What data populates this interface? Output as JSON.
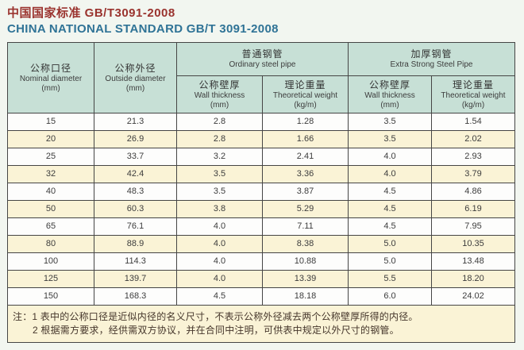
{
  "title": {
    "line1": "中国国家标准 GB/T3091-2008",
    "line2": "CHINA NATIONAL STANDARD GB/T 3091-2008"
  },
  "colors": {
    "page-bg": "#f2f6f0",
    "header-mint": "#c7e0d6",
    "row-cream": "#faf3d6",
    "row-white": "#fdfdfc",
    "border": "#454545",
    "title-red": "#9a332e",
    "title-blue": "#2f7396"
  },
  "table": {
    "header": {
      "col1": {
        "zh": "公称口径",
        "en": "Nominal diameter",
        "unit": "(mm)"
      },
      "col2": {
        "zh": "公称外径",
        "en": "Outside diameter",
        "unit": "(mm)"
      },
      "group_ordinary": {
        "zh": "普通钢管",
        "en": "Ordinary steel pipe"
      },
      "group_extra": {
        "zh": "加厚钢管",
        "en": "Extra Strong Steel Pipe"
      },
      "sub_wall": {
        "zh": "公称壁厚",
        "en": "Wall thickness",
        "unit": "(mm)"
      },
      "sub_weight": {
        "zh": "理论重量",
        "en": "Theoretical weight",
        "unit": "(kg/m)"
      }
    },
    "rows": [
      [
        "15",
        "21.3",
        "2.8",
        "1.28",
        "3.5",
        "1.54"
      ],
      [
        "20",
        "26.9",
        "2.8",
        "1.66",
        "3.5",
        "2.02"
      ],
      [
        "25",
        "33.7",
        "3.2",
        "2.41",
        "4.0",
        "2.93"
      ],
      [
        "32",
        "42.4",
        "3.5",
        "3.36",
        "4.0",
        "3.79"
      ],
      [
        "40",
        "48.3",
        "3.5",
        "3.87",
        "4.5",
        "4.86"
      ],
      [
        "50",
        "60.3",
        "3.8",
        "5.29",
        "4.5",
        "6.19"
      ],
      [
        "65",
        "76.1",
        "4.0",
        "7.11",
        "4.5",
        "7.95"
      ],
      [
        "80",
        "88.9",
        "4.0",
        "8.38",
        "5.0",
        "10.35"
      ],
      [
        "100",
        "114.3",
        "4.0",
        "10.88",
        "5.0",
        "13.48"
      ],
      [
        "125",
        "139.7",
        "4.0",
        "13.39",
        "5.5",
        "18.20"
      ],
      [
        "150",
        "168.3",
        "4.5",
        "18.18",
        "6.0",
        "24.02"
      ]
    ],
    "notes": {
      "line1": "注：1 表中的公称口径是近似内径的名义尺寸，不表示公称外径减去两个公称壁厚所得的内径。",
      "line2": "2 根据需方要求，经供需双方协议，并在合同中注明，可供表中规定以外尺寸的钢管。"
    }
  },
  "chart_data": {
    "type": "table",
    "title": "中国国家标准 GB/T3091-2008 / CHINA NATIONAL STANDARD GB/T 3091-2008",
    "columns": [
      "Nominal diameter (mm)",
      "Outside diameter (mm)",
      "Ordinary steel pipe - Wall thickness (mm)",
      "Ordinary steel pipe - Theoretical weight (kg/m)",
      "Extra Strong Steel Pipe - Wall thickness (mm)",
      "Extra Strong Steel Pipe - Theoretical weight (kg/m)"
    ],
    "rows": [
      [
        15,
        21.3,
        2.8,
        1.28,
        3.5,
        1.54
      ],
      [
        20,
        26.9,
        2.8,
        1.66,
        3.5,
        2.02
      ],
      [
        25,
        33.7,
        3.2,
        2.41,
        4.0,
        2.93
      ],
      [
        32,
        42.4,
        3.5,
        3.36,
        4.0,
        3.79
      ],
      [
        40,
        48.3,
        3.5,
        3.87,
        4.5,
        4.86
      ],
      [
        50,
        60.3,
        3.8,
        5.29,
        4.5,
        6.19
      ],
      [
        65,
        76.1,
        4.0,
        7.11,
        4.5,
        7.95
      ],
      [
        80,
        88.9,
        4.0,
        8.38,
        5.0,
        10.35
      ],
      [
        100,
        114.3,
        4.0,
        10.88,
        5.0,
        13.48
      ],
      [
        125,
        139.7,
        4.0,
        13.39,
        5.5,
        18.2
      ],
      [
        150,
        168.3,
        4.5,
        18.18,
        6.0,
        24.02
      ]
    ]
  }
}
